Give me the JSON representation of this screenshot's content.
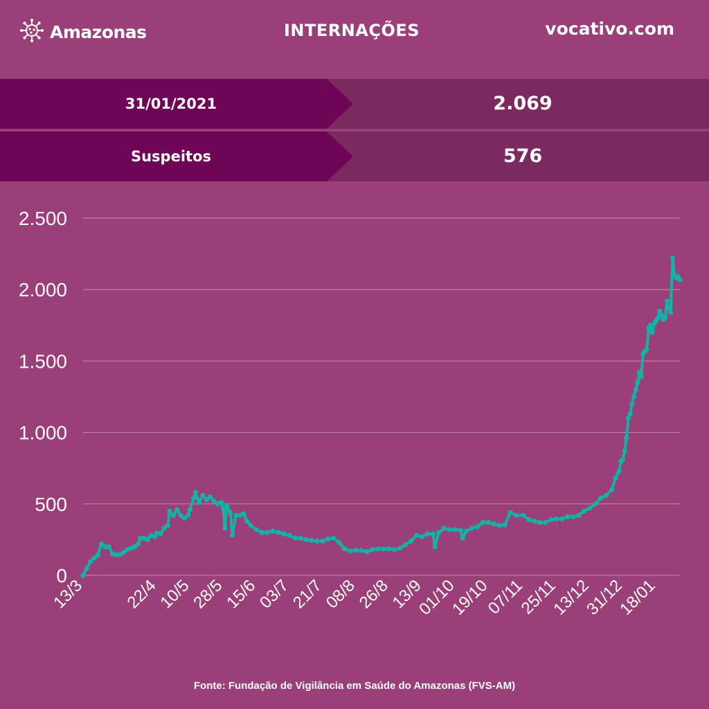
{
  "header": {
    "brand": "Amazonas",
    "brand_icon": "virus-icon",
    "title": "INTERNAÇÕES",
    "site": "vocativo.com"
  },
  "summary": {
    "date_label": "31/01/2021",
    "date_value": "2.069",
    "suspects_label": "Suspeitos",
    "suspects_value": "576"
  },
  "colors": {
    "background": "#9a3f78",
    "band_label": "#6e0556",
    "band_value": "#7a2a5f",
    "line": "#12b3a6",
    "grid": "#c48cb0"
  },
  "chart_data": {
    "type": "line",
    "title": "",
    "xlabel": "",
    "ylabel": "",
    "x_start": "2020-03-13",
    "x_end": "2021-01-31",
    "ylim": [
      0,
      2500
    ],
    "y_ticks": [
      0,
      500,
      1000,
      1500,
      2000,
      2500
    ],
    "y_tick_labels": [
      "0",
      "500",
      "1.000",
      "1.500",
      "2.000",
      "2.500"
    ],
    "x_tick_labels": [
      "13/3",
      "22/4",
      "10/5",
      "28/5",
      "15/6",
      "03/7",
      "21/7",
      "08/8",
      "26/8",
      "13/9",
      "01/10",
      "19/10",
      "07/11",
      "25/11",
      "13/12",
      "31/12",
      "18/01"
    ],
    "x_tick_dates": [
      "2020-03-13",
      "2020-04-22",
      "2020-05-10",
      "2020-05-28",
      "2020-06-15",
      "2020-07-03",
      "2020-07-21",
      "2020-08-08",
      "2020-08-26",
      "2020-09-13",
      "2020-10-01",
      "2020-10-19",
      "2020-11-07",
      "2020-11-25",
      "2020-12-13",
      "2020-12-31",
      "2021-01-18"
    ],
    "grid": true,
    "legend": "none",
    "series": [
      {
        "points": [
          [
            "2020-03-13",
            0
          ],
          [
            "2020-03-15",
            50
          ],
          [
            "2020-03-17",
            95
          ],
          [
            "2020-03-19",
            120
          ],
          [
            "2020-03-21",
            140
          ],
          [
            "2020-03-23",
            220
          ],
          [
            "2020-03-25",
            200
          ],
          [
            "2020-03-27",
            200
          ],
          [
            "2020-03-29",
            150
          ],
          [
            "2020-03-31",
            145
          ],
          [
            "2020-04-02",
            145
          ],
          [
            "2020-04-04",
            160
          ],
          [
            "2020-04-06",
            180
          ],
          [
            "2020-04-08",
            190
          ],
          [
            "2020-04-10",
            200
          ],
          [
            "2020-04-12",
            220
          ],
          [
            "2020-04-13",
            260
          ],
          [
            "2020-04-15",
            260
          ],
          [
            "2020-04-17",
            250
          ],
          [
            "2020-04-19",
            280
          ],
          [
            "2020-04-21",
            270
          ],
          [
            "2020-04-22",
            295
          ],
          [
            "2020-04-24",
            290
          ],
          [
            "2020-04-26",
            330
          ],
          [
            "2020-04-28",
            350
          ],
          [
            "2020-04-29",
            450
          ],
          [
            "2020-05-01",
            420
          ],
          [
            "2020-05-03",
            460
          ],
          [
            "2020-05-05",
            420
          ],
          [
            "2020-05-07",
            400
          ],
          [
            "2020-05-09",
            420
          ],
          [
            "2020-05-10",
            460
          ],
          [
            "2020-05-12",
            540
          ],
          [
            "2020-05-13",
            580
          ],
          [
            "2020-05-15",
            510
          ],
          [
            "2020-05-17",
            560
          ],
          [
            "2020-05-19",
            530
          ],
          [
            "2020-05-21",
            550
          ],
          [
            "2020-05-23",
            520
          ],
          [
            "2020-05-25",
            500
          ],
          [
            "2020-05-27",
            510
          ],
          [
            "2020-05-28",
            470
          ],
          [
            "2020-05-29",
            330
          ],
          [
            "2020-05-30",
            490
          ],
          [
            "2020-06-01",
            440
          ],
          [
            "2020-06-02",
            280
          ],
          [
            "2020-06-04",
            420
          ],
          [
            "2020-06-06",
            420
          ],
          [
            "2020-06-08",
            430
          ],
          [
            "2020-06-10",
            380
          ],
          [
            "2020-06-12",
            350
          ],
          [
            "2020-06-15",
            320
          ],
          [
            "2020-06-18",
            300
          ],
          [
            "2020-06-21",
            300
          ],
          [
            "2020-06-24",
            310
          ],
          [
            "2020-06-27",
            300
          ],
          [
            "2020-06-30",
            290
          ],
          [
            "2020-07-03",
            280
          ],
          [
            "2020-07-06",
            260
          ],
          [
            "2020-07-09",
            260
          ],
          [
            "2020-07-12",
            250
          ],
          [
            "2020-07-15",
            245
          ],
          [
            "2020-07-18",
            240
          ],
          [
            "2020-07-21",
            240
          ],
          [
            "2020-07-24",
            255
          ],
          [
            "2020-07-27",
            260
          ],
          [
            "2020-07-30",
            230
          ],
          [
            "2020-08-02",
            185
          ],
          [
            "2020-08-05",
            170
          ],
          [
            "2020-08-08",
            175
          ],
          [
            "2020-08-11",
            175
          ],
          [
            "2020-08-14",
            165
          ],
          [
            "2020-08-17",
            180
          ],
          [
            "2020-08-20",
            185
          ],
          [
            "2020-08-23",
            185
          ],
          [
            "2020-08-26",
            185
          ],
          [
            "2020-08-29",
            180
          ],
          [
            "2020-09-01",
            190
          ],
          [
            "2020-09-04",
            215
          ],
          [
            "2020-09-07",
            240
          ],
          [
            "2020-09-10",
            280
          ],
          [
            "2020-09-13",
            270
          ],
          [
            "2020-09-16",
            290
          ],
          [
            "2020-09-19",
            290
          ],
          [
            "2020-09-20",
            200
          ],
          [
            "2020-09-22",
            300
          ],
          [
            "2020-09-25",
            330
          ],
          [
            "2020-09-28",
            320
          ],
          [
            "2020-10-01",
            320
          ],
          [
            "2020-10-04",
            315
          ],
          [
            "2020-10-05",
            260
          ],
          [
            "2020-10-07",
            310
          ],
          [
            "2020-10-10",
            330
          ],
          [
            "2020-10-13",
            340
          ],
          [
            "2020-10-16",
            370
          ],
          [
            "2020-10-19",
            370
          ],
          [
            "2020-10-22",
            360
          ],
          [
            "2020-10-25",
            350
          ],
          [
            "2020-10-28",
            355
          ],
          [
            "2020-10-31",
            440
          ],
          [
            "2020-11-03",
            420
          ],
          [
            "2020-11-07",
            420
          ],
          [
            "2020-11-10",
            390
          ],
          [
            "2020-11-13",
            380
          ],
          [
            "2020-11-16",
            370
          ],
          [
            "2020-11-19",
            370
          ],
          [
            "2020-11-22",
            390
          ],
          [
            "2020-11-25",
            395
          ],
          [
            "2020-11-28",
            395
          ],
          [
            "2020-12-01",
            410
          ],
          [
            "2020-12-04",
            410
          ],
          [
            "2020-12-07",
            420
          ],
          [
            "2020-12-10",
            450
          ],
          [
            "2020-12-13",
            470
          ],
          [
            "2020-12-16",
            500
          ],
          [
            "2020-12-19",
            540
          ],
          [
            "2020-12-22",
            560
          ],
          [
            "2020-12-25",
            600
          ],
          [
            "2020-12-27",
            680
          ],
          [
            "2020-12-29",
            730
          ],
          [
            "2020-12-30",
            800
          ],
          [
            "2020-12-31",
            810
          ],
          [
            "2021-01-01",
            870
          ],
          [
            "2021-01-02",
            960
          ],
          [
            "2021-01-03",
            1100
          ],
          [
            "2021-01-04",
            1130
          ],
          [
            "2021-01-05",
            1200
          ],
          [
            "2021-01-06",
            1250
          ],
          [
            "2021-01-07",
            1300
          ],
          [
            "2021-01-08",
            1350
          ],
          [
            "2021-01-09",
            1420
          ],
          [
            "2021-01-10",
            1390
          ],
          [
            "2021-01-11",
            1550
          ],
          [
            "2021-01-12",
            1570
          ],
          [
            "2021-01-13",
            1580
          ],
          [
            "2021-01-14",
            1730
          ],
          [
            "2021-01-15",
            1750
          ],
          [
            "2021-01-16",
            1700
          ],
          [
            "2021-01-17",
            1760
          ],
          [
            "2021-01-18",
            1780
          ],
          [
            "2021-01-19",
            1800
          ],
          [
            "2021-01-20",
            1850
          ],
          [
            "2021-01-21",
            1820
          ],
          [
            "2021-01-22",
            1790
          ],
          [
            "2021-01-23",
            1800
          ],
          [
            "2021-01-24",
            1920
          ],
          [
            "2021-01-25",
            1870
          ],
          [
            "2021-01-26",
            1840
          ],
          [
            "2021-01-27",
            2220
          ],
          [
            "2021-01-28",
            2100
          ],
          [
            "2021-01-29",
            2080
          ],
          [
            "2021-01-30",
            2090
          ],
          [
            "2021-01-31",
            2069
          ]
        ]
      }
    ]
  },
  "footer": {
    "source": "Fonte: Fundação de Vigilância em Saúde do Amazonas (FVS-AM)"
  }
}
